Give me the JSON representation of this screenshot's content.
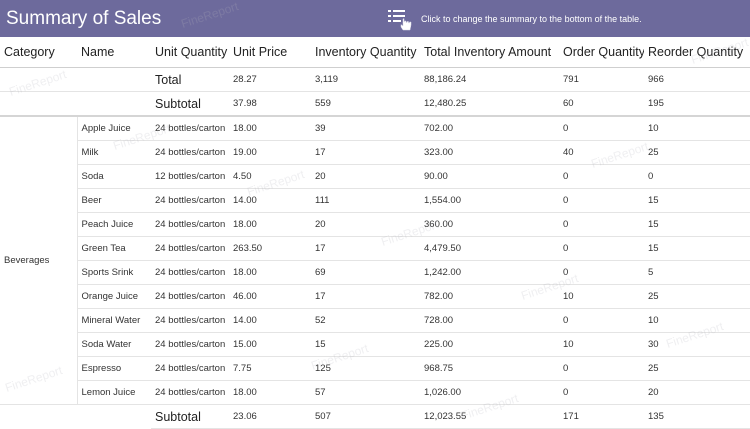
{
  "header": {
    "title": "Summary of Sales",
    "hint": "Click to change the summary to the bottom of the table.",
    "button_icon": "list-hand-icon"
  },
  "columns": [
    "Category",
    "Name",
    "Unit Quantity",
    "Unit Price",
    "Inventory Quantity",
    "Total Inventory Amount",
    "Order Quantity",
    "Reorder Quantity"
  ],
  "total_row": {
    "label": "Total",
    "unit_price": "28.27",
    "inventory_quantity": "3,119",
    "total_inventory_amount": "88,186.24",
    "order_quantity": "791",
    "reorder_quantity": "966"
  },
  "subtotal_top": {
    "label": "Subtotal",
    "unit_price": "37.98",
    "inventory_quantity": "559",
    "total_inventory_amount": "12,480.25",
    "order_quantity": "60",
    "reorder_quantity": "195"
  },
  "category": "Beverages",
  "rows": [
    {
      "name": "Apple Juice",
      "unit_quantity": "24 bottles/carton",
      "unit_price": "18.00",
      "inventory_quantity": "39",
      "total_inventory_amount": "702.00",
      "order_quantity": "0",
      "reorder_quantity": "10"
    },
    {
      "name": "Milk",
      "unit_quantity": "24 bottles/carton",
      "unit_price": "19.00",
      "inventory_quantity": "17",
      "total_inventory_amount": "323.00",
      "order_quantity": "40",
      "reorder_quantity": "25"
    },
    {
      "name": "Soda",
      "unit_quantity": "12 bottles/carton",
      "unit_price": "4.50",
      "inventory_quantity": "20",
      "total_inventory_amount": "90.00",
      "order_quantity": "0",
      "reorder_quantity": "0"
    },
    {
      "name": "Beer",
      "unit_quantity": "24 bottles/carton",
      "unit_price": "14.00",
      "inventory_quantity": "111",
      "total_inventory_amount": "1,554.00",
      "order_quantity": "0",
      "reorder_quantity": "15"
    },
    {
      "name": "Peach Juice",
      "unit_quantity": "24 bottles/carton",
      "unit_price": "18.00",
      "inventory_quantity": "20",
      "total_inventory_amount": "360.00",
      "order_quantity": "0",
      "reorder_quantity": "15"
    },
    {
      "name": "Green Tea",
      "unit_quantity": "24 bottles/carton",
      "unit_price": "263.50",
      "inventory_quantity": "17",
      "total_inventory_amount": "4,479.50",
      "order_quantity": "0",
      "reorder_quantity": "15"
    },
    {
      "name": "Sports Srink",
      "unit_quantity": "24 bottles/carton",
      "unit_price": "18.00",
      "inventory_quantity": "69",
      "total_inventory_amount": "1,242.00",
      "order_quantity": "0",
      "reorder_quantity": "5"
    },
    {
      "name": "Orange Juice",
      "unit_quantity": "24 bottles/carton",
      "unit_price": "46.00",
      "inventory_quantity": "17",
      "total_inventory_amount": "782.00",
      "order_quantity": "10",
      "reorder_quantity": "25"
    },
    {
      "name": "Mineral Water",
      "unit_quantity": "24 bottles/carton",
      "unit_price": "14.00",
      "inventory_quantity": "52",
      "total_inventory_amount": "728.00",
      "order_quantity": "0",
      "reorder_quantity": "10"
    },
    {
      "name": "Soda Water",
      "unit_quantity": "24 bottles/carton",
      "unit_price": "15.00",
      "inventory_quantity": "15",
      "total_inventory_amount": "225.00",
      "order_quantity": "10",
      "reorder_quantity": "30"
    },
    {
      "name": "Espresso",
      "unit_quantity": "24 bottles/carton",
      "unit_price": "7.75",
      "inventory_quantity": "125",
      "total_inventory_amount": "968.75",
      "order_quantity": "0",
      "reorder_quantity": "25"
    },
    {
      "name": "Lemon Juice",
      "unit_quantity": "24 bottles/carton",
      "unit_price": "18.00",
      "inventory_quantity": "57",
      "total_inventory_amount": "1,026.00",
      "order_quantity": "0",
      "reorder_quantity": "20"
    }
  ],
  "subtotal_bottom": {
    "label": "Subtotal",
    "unit_price": "23.06",
    "inventory_quantity": "507",
    "total_inventory_amount": "12,023.55",
    "order_quantity": "171",
    "reorder_quantity": "135"
  },
  "watermark": "FineReport",
  "colors": {
    "header_bg": "#6d6a9c",
    "header_text": "#ffffff",
    "grid": "#e4e4e4"
  }
}
